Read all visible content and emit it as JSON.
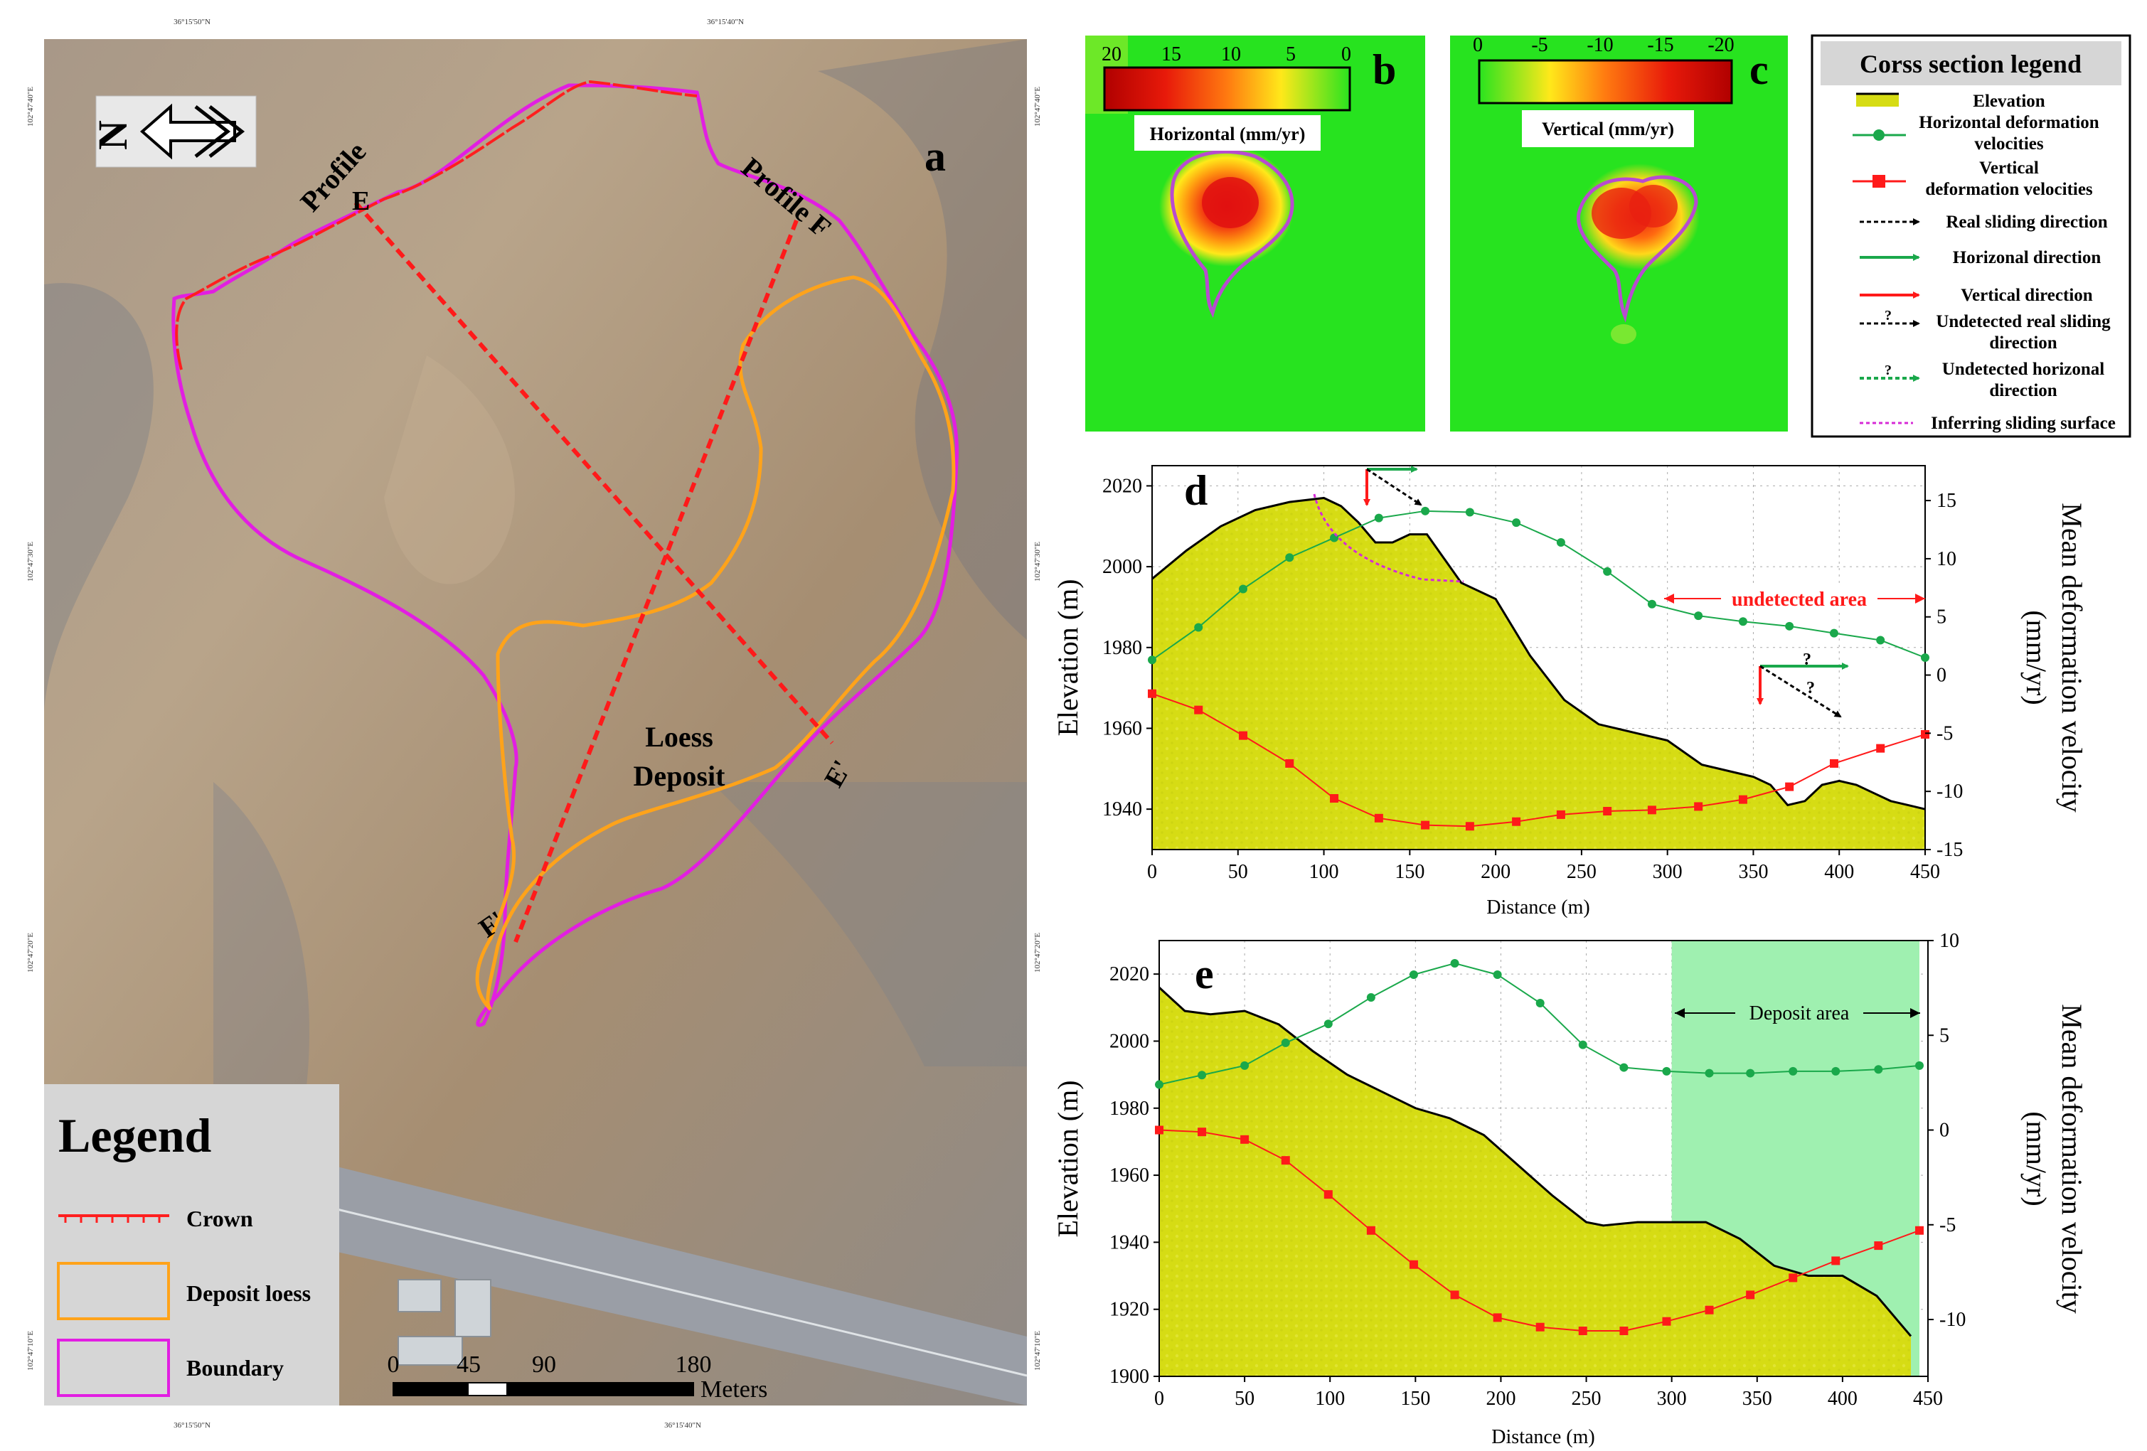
{
  "colors": {
    "crown": "#ff1f1f",
    "deposit": "#ffa31a",
    "boundary": "#e21ee2",
    "profile": "#ff1a1a",
    "horizontal": "#1aa84b",
    "vertical": "#ff1a1a",
    "elevation_fill": "#d6dc14",
    "deposit_area_fill": "#9ff0b0",
    "map_green": "#27e31f"
  },
  "panel_a": {
    "label": "a",
    "coord_top": [
      "36°15'50\"N",
      "36°15'40\"N"
    ],
    "coord_bottom": [
      "36°15'50\"N",
      "36°15'40\"N"
    ],
    "coord_left": [
      "102°47'40\"E",
      "102°47'30\"E",
      "102°47'20\"E",
      "102°47'10\"E"
    ],
    "coord_right": [
      "102°47'40\"E",
      "102°47'30\"E",
      "102°47'20\"E",
      "102°47'10\"E"
    ],
    "north_letter": "N",
    "profile_e_label": "Profile",
    "profile_e_start": "E",
    "profile_e_end": "E'",
    "profile_f_label": "Profile F",
    "profile_f_end": "F'",
    "deposit_text_1": "Loess",
    "deposit_text_2": "Deposit",
    "legend_title": "Legend",
    "legend_items": [
      "Crown",
      "Deposit loess",
      "Boundary"
    ],
    "scale_ticks": [
      "0",
      "45",
      "90",
      "180"
    ],
    "scale_unit": "Meters"
  },
  "panel_b": {
    "label": "b",
    "scale_ticks": [
      "20",
      "15",
      "10",
      "5",
      "0"
    ],
    "caption": "Horizontal  (mm/yr)"
  },
  "panel_c": {
    "label": "c",
    "scale_ticks": [
      "0",
      "-5",
      "-10",
      "-15",
      "-20"
    ],
    "caption": "Vertical  (mm/yr)"
  },
  "cross_legend": {
    "title": "Corss section legend",
    "items": [
      [
        "Elevation"
      ],
      [
        "Horizontal deformation",
        "velocities"
      ],
      [
        "Vertical",
        "deformation velocities"
      ],
      [
        "Real sliding direction"
      ],
      [
        "Horizonal direction"
      ],
      [
        "Vertical direction"
      ],
      [
        "Undetected real sliding",
        "direction"
      ],
      [
        "Undetected horizonal",
        "direction"
      ],
      [
        "Inferring sliding surface"
      ]
    ],
    "question_mark": "?"
  },
  "chart_data": [
    {
      "panel": "d",
      "type": "line",
      "xlabel": "Distance (m)",
      "ylabel": "Elevation (m)",
      "y2label": [
        "Mean deformation velocity",
        "(mm/yr)"
      ],
      "xlim": [
        0,
        450
      ],
      "xticks": [
        "0",
        "50",
        "100",
        "150",
        "200",
        "250",
        "300",
        "350",
        "400",
        "450"
      ],
      "ylim": [
        1930,
        2025
      ],
      "yticks": [
        "1940",
        "1960",
        "1980",
        "2000",
        "2020"
      ],
      "y2lim": [
        -15,
        18
      ],
      "y2ticks": [
        "-15",
        "-10",
        "-5",
        "0",
        "5",
        "10",
        "15"
      ],
      "grid": true,
      "annotation": "undetected area",
      "elevation": {
        "x": [
          0,
          20,
          40,
          60,
          80,
          100,
          110,
          120,
          130,
          140,
          150,
          160,
          170,
          180,
          200,
          220,
          240,
          260,
          280,
          300,
          320,
          340,
          350,
          360,
          370,
          380,
          390,
          400,
          410,
          420,
          430,
          440,
          450
        ],
        "y": [
          1997,
          2004,
          2010,
          2014,
          2016,
          2017,
          2015,
          2011,
          2006,
          2006,
          2008,
          2008,
          2002,
          1996,
          1992,
          1978,
          1967,
          1961,
          1959,
          1957,
          1951,
          1949,
          1948,
          1946,
          1941,
          1942,
          1946,
          1947,
          1946,
          1944,
          1942,
          1941,
          1940
        ]
      },
      "series": [
        {
          "x": [
            0,
            27,
            53,
            80,
            106,
            132,
            159,
            185,
            212,
            238,
            265,
            291,
            318,
            344,
            371,
            397,
            424,
            450
          ],
          "values": [
            1.3,
            4.1,
            7.4,
            10.1,
            11.8,
            13.5,
            14.1,
            14.0,
            13.1,
            11.4,
            8.9,
            6.1,
            5.1,
            4.6,
            4.2,
            3.6,
            3.0,
            1.5
          ]
        },
        {
          "x": [
            0,
            27,
            53,
            80,
            106,
            132,
            159,
            185,
            212,
            238,
            265,
            291,
            318,
            344,
            371,
            397,
            424,
            450
          ],
          "values": [
            -1.6,
            -3.0,
            -5.2,
            -7.6,
            -10.6,
            -12.3,
            -12.9,
            -13.0,
            -12.6,
            -12.0,
            -11.7,
            -11.6,
            -11.3,
            -10.7,
            -9.6,
            -7.6,
            -6.3,
            -5.1
          ]
        }
      ]
    },
    {
      "panel": "e",
      "type": "line",
      "xlabel": "Distance (m)",
      "ylabel": "Elevation (m)",
      "y2label": [
        "Mean deformation velocity",
        "(mm/yr)"
      ],
      "xlim": [
        0,
        450
      ],
      "xticks": [
        "0",
        "50",
        "100",
        "150",
        "200",
        "250",
        "300",
        "350",
        "400",
        "450"
      ],
      "ylim": [
        1900,
        2030
      ],
      "yticks": [
        "1900",
        "1920",
        "1940",
        "1960",
        "1980",
        "2000",
        "2020"
      ],
      "y2lim": [
        -13,
        10
      ],
      "y2ticks": [
        "-10",
        "-5",
        "0",
        "5",
        "10"
      ],
      "grid": true,
      "annotation": "Deposit area",
      "shaded_x": [
        300,
        445
      ],
      "elevation": {
        "x": [
          0,
          15,
          30,
          50,
          70,
          90,
          110,
          130,
          150,
          170,
          190,
          210,
          230,
          250,
          260,
          280,
          300,
          320,
          340,
          360,
          380,
          400,
          420,
          440
        ],
        "y": [
          2016,
          2009,
          2008,
          2009,
          2005,
          1997,
          1990,
          1985,
          1980,
          1977,
          1972,
          1963,
          1954,
          1946,
          1945,
          1946,
          1946,
          1946,
          1941,
          1933,
          1930,
          1930,
          1924,
          1912
        ]
      },
      "series": [
        {
          "x": [
            0,
            25,
            50,
            74,
            99,
            124,
            149,
            173,
            198,
            223,
            248,
            272,
            297,
            322,
            346,
            371,
            396,
            421,
            445
          ],
          "values": [
            2.4,
            2.9,
            3.4,
            4.6,
            5.6,
            7.0,
            8.2,
            8.8,
            8.2,
            6.7,
            4.5,
            3.3,
            3.1,
            3.0,
            3.0,
            3.1,
            3.1,
            3.2,
            3.4
          ]
        },
        {
          "x": [
            0,
            25,
            50,
            74,
            99,
            124,
            149,
            173,
            198,
            223,
            248,
            272,
            297,
            322,
            346,
            371,
            396,
            421,
            445
          ],
          "values": [
            0.0,
            -0.1,
            -0.5,
            -1.6,
            -3.4,
            -5.3,
            -7.1,
            -8.7,
            -9.9,
            -10.4,
            -10.6,
            -10.6,
            -10.1,
            -9.5,
            -8.7,
            -7.8,
            -6.9,
            -6.1,
            -5.3
          ]
        }
      ]
    }
  ]
}
